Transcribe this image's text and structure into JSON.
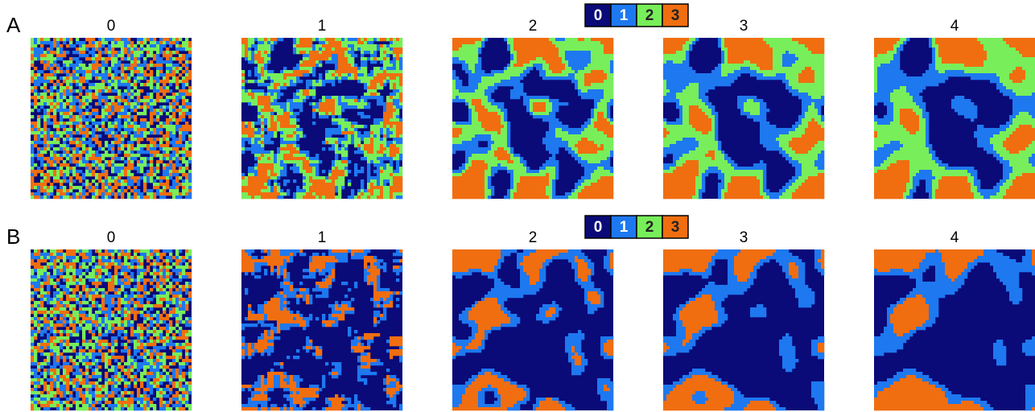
{
  "panels": [
    {
      "label": "A",
      "legend": [
        "0",
        "1",
        "2",
        "3"
      ],
      "titles": [
        "0",
        "1",
        "2",
        "3",
        "4"
      ]
    },
    {
      "label": "B",
      "legend": [
        "0",
        "1",
        "2",
        "3"
      ],
      "titles": [
        "0",
        "1",
        "2",
        "3",
        "4"
      ]
    }
  ]
}
